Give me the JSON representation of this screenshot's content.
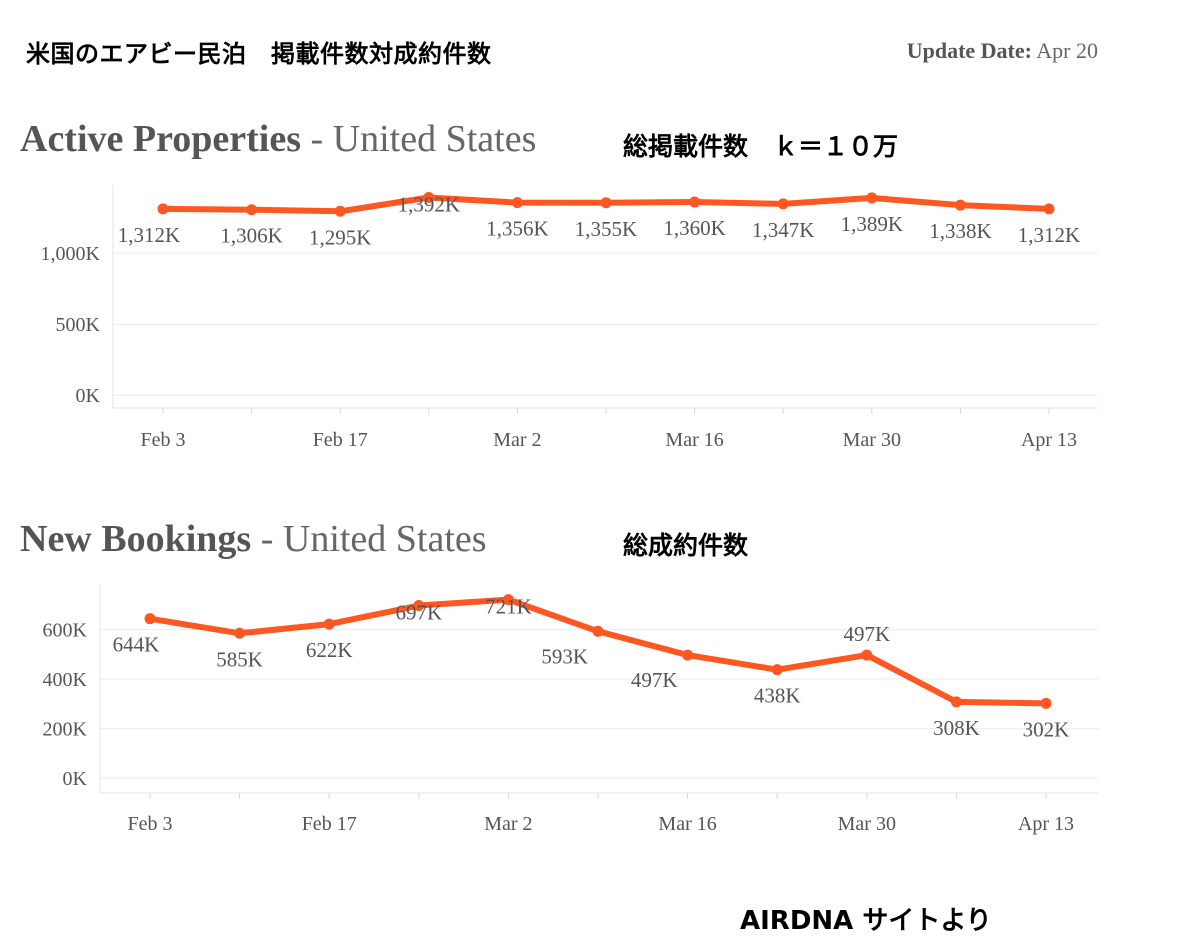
{
  "page": {
    "title": "米国のエアビー民泊　掲載件数対成約件数",
    "update_label": "Update Date:",
    "update_value": "Apr 20",
    "source": "AIRDNA サイトより"
  },
  "chart_data": [
    {
      "type": "line",
      "title_strong": "Active Properties",
      "title_sep": " - ",
      "title_rest": "United States",
      "annotation": "総掲載件数　ｋ＝１０万",
      "color": "#fe5722",
      "x": [
        "Feb 3",
        "Feb 10",
        "Feb 17",
        "Feb 24",
        "Mar 2",
        "Mar 9",
        "Mar 16",
        "Mar 23",
        "Mar 30",
        "Apr 6",
        "Apr 13"
      ],
      "x_tick_labels": [
        "Feb 3",
        "Feb 17",
        "Mar 2",
        "Mar 16",
        "Mar 30",
        "Apr 13"
      ],
      "values": [
        1312,
        1306,
        1295,
        1392,
        1356,
        1355,
        1360,
        1347,
        1389,
        1338,
        1312
      ],
      "data_labels": [
        "1,312K",
        "1,306K",
        "1,295K",
        "1,392K",
        "1,356K",
        "1,355K",
        "1,360K",
        "1,347K",
        "1,389K",
        "1,338K",
        "1,312K"
      ],
      "y_ticks": [
        0,
        500,
        1000
      ],
      "y_tick_labels": [
        "0K",
        "500K",
        "1,000K"
      ],
      "ylim": [
        -90,
        1480
      ],
      "unit": "K",
      "grid": true
    },
    {
      "type": "line",
      "title_strong": "New Bookings",
      "title_sep": " - ",
      "title_rest": "United States",
      "annotation": "総成約件数",
      "color": "#fe5722",
      "x": [
        "Feb 3",
        "Feb 10",
        "Feb 17",
        "Feb 24",
        "Mar 2",
        "Mar 9",
        "Mar 16",
        "Mar 23",
        "Mar 30",
        "Apr 6",
        "Apr 13"
      ],
      "x_tick_labels": [
        "Feb 3",
        "Feb 17",
        "Mar 2",
        "Mar 16",
        "Mar 30",
        "Apr 13"
      ],
      "values": [
        644,
        585,
        622,
        697,
        721,
        593,
        497,
        438,
        497,
        308,
        302
      ],
      "data_labels": [
        "644K",
        "585K",
        "622K",
        "697K",
        "721K",
        "593K",
        "497K",
        "438K",
        "497K",
        "308K",
        "302K"
      ],
      "y_ticks": [
        0,
        200,
        400,
        600
      ],
      "y_tick_labels": [
        "0K",
        "200K",
        "400K",
        "600K"
      ],
      "ylim": [
        -60,
        780
      ],
      "unit": "K",
      "grid": true
    }
  ]
}
